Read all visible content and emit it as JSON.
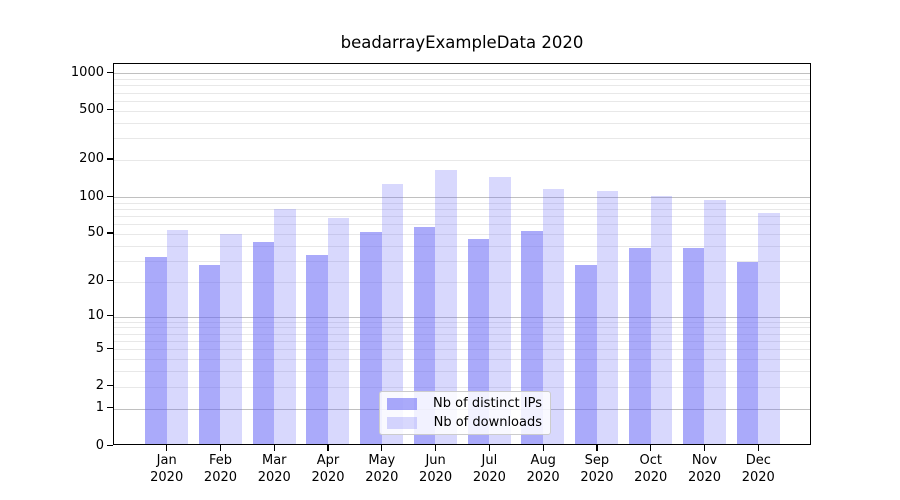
{
  "chart_data": {
    "type": "bar",
    "title": "beadarrayExampleData 2020",
    "categories": [
      "Jan",
      "Feb",
      "Mar",
      "Apr",
      "May",
      "Jun",
      "Jul",
      "Aug",
      "Sep",
      "Oct",
      "Nov",
      "Dec"
    ],
    "category_year": "2020",
    "series": [
      {
        "name": "Nb of distinct IPs",
        "color": "rgba(100,100,246,0.55)",
        "values": [
          32,
          27,
          42,
          33,
          51,
          56,
          45,
          52,
          27,
          38,
          38,
          29
        ]
      },
      {
        "name": "Nb of downloads",
        "color": "rgba(100,100,246,0.25)",
        "values": [
          53,
          49,
          79,
          66,
          125,
          163,
          144,
          114,
          110,
          101,
          93,
          73
        ]
      }
    ],
    "xlabel": "",
    "ylabel": "",
    "yscale": "log1p",
    "ylim": [
      0,
      1190
    ],
    "yticks": [
      0,
      1,
      2,
      5,
      10,
      20,
      50,
      100,
      200,
      500,
      1000
    ],
    "major_grid_values": [
      1,
      10,
      100,
      1000
    ],
    "minor_grid_values": [
      2,
      3,
      4,
      5,
      6,
      7,
      8,
      9,
      20,
      30,
      40,
      50,
      60,
      70,
      80,
      90,
      200,
      300,
      400,
      500,
      600,
      700,
      800,
      900
    ],
    "grid": true,
    "legend_position": "lower center",
    "colors": {
      "bar_dark": "rgba(100,100,246,0.55)",
      "bar_light": "rgba(100,100,246,0.25)",
      "major_grid": "#c0c0c0",
      "minor_grid": "#e8e8e8",
      "spine": "#000000",
      "text": "#000000",
      "background": "#ffffff"
    }
  }
}
